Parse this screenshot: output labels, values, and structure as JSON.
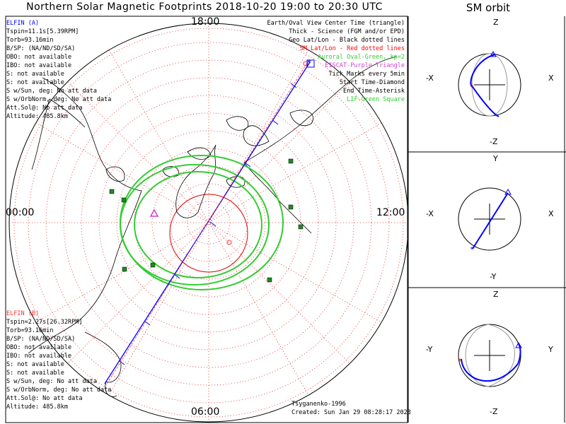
{
  "title": "Northern Solar Magnetic Footprints 2018-10-20 19:00 to 20:30 UTC",
  "orbit_title": "SM orbit",
  "hours": {
    "top": "18:00",
    "left": "00:00",
    "right": "12:00",
    "bottom": "06:00"
  },
  "elfin_a": {
    "name": "ELFIN (A)",
    "color": "#0000ff",
    "lines": [
      "Tspin=11.1s[5.39RPM]",
      "Torb=93.16min",
      "B/SP: (NA/ND/SD/SA)",
      "OBO: not available",
      "IBO: not available",
      "S: not available",
      "S: not available",
      "S w/Sun, deg: No att data",
      "S w/OrbNorm, deg: No att data",
      "Att.Sol@: No att data",
      "Altitude: 485.8km"
    ]
  },
  "elfin_b": {
    "name": "ELFIN (B)",
    "color": "#ff3333",
    "lines": [
      "Tspin=2.27s[26.32RPM]",
      "Torb=93.16min",
      "B/SP: (NA/ND/SD/SA)",
      "OBO: not available",
      "IBO: not available",
      "S: not available",
      "S: not available",
      "S w/Sun, deg: No att data",
      "S w/OrbNorm, deg: No att data",
      "Att.Sol@: No att data",
      "Altitude: 485.8km"
    ]
  },
  "legend": [
    {
      "text": "Earth/Oval View Center Time (triangle)",
      "color": "#000000"
    },
    {
      "text": "Thick - Science (FGM and/or EPD)",
      "color": "#000000"
    },
    {
      "text": "Geo Lat/Lon - Black dotted lines",
      "color": "#000000"
    },
    {
      "text": "SM Lat/Lon - Red dotted lines",
      "color": "#ff0000"
    },
    {
      "text": "Auroral Oval-Green, kp=2",
      "color": "#33cc33"
    },
    {
      "text": "EISCAT-Purple Triangle",
      "color": "#cc44cc"
    },
    {
      "text": "Tick Marks every 5min",
      "color": "#000000"
    },
    {
      "text": "Start Time-Diamond",
      "color": "#000000"
    },
    {
      "text": "End Time-Asterisk",
      "color": "#000000"
    },
    {
      "text": "LIF-Green Square",
      "color": "#33cc33"
    }
  ],
  "credit": {
    "line1": "Tsyganenko-1996",
    "line2": "Created: Sun Jan 29 08:28:17 2023"
  },
  "panels": [
    {
      "top": "Z",
      "bottom": "-Z",
      "left": "-X",
      "right": "X"
    },
    {
      "top": "Y",
      "bottom": "-Y",
      "left": "-X",
      "right": "X"
    },
    {
      "top": "Z",
      "bottom": "-Z",
      "left": "-Y",
      "right": "Y"
    }
  ]
}
